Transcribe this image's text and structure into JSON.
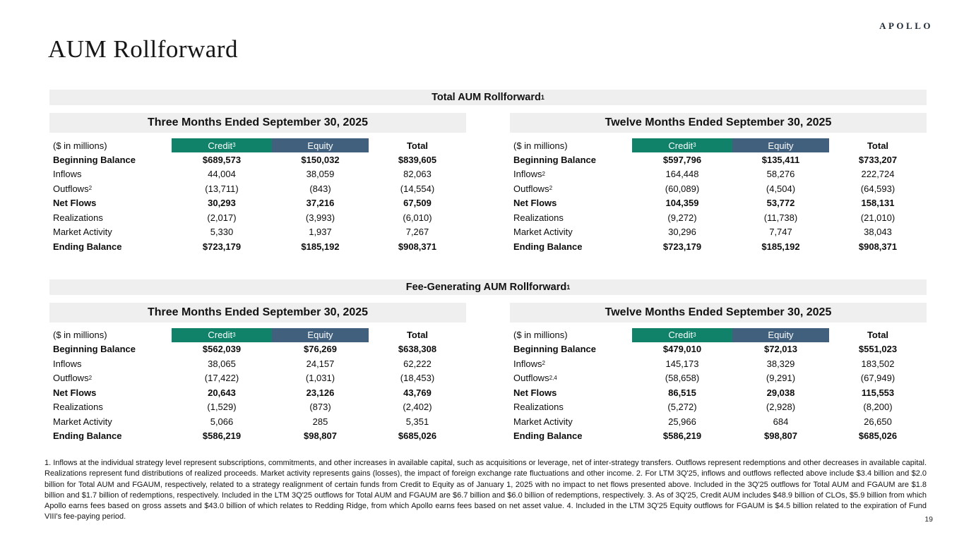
{
  "logo": "APOLLO",
  "page_title": "AUM Rollforward",
  "page_number": "19",
  "colors": {
    "credit": "#10826A",
    "equity": "#41607E",
    "band": "#EFEFEF"
  },
  "sections": [
    {
      "title": "Total AUM Rollforward",
      "title_sup": "1",
      "tables": [
        {
          "period": "Three Months Ended September 30, 2025",
          "unit_label": "($ in millions)",
          "columns": [
            {
              "label": "Credit",
              "sup": "3"
            },
            {
              "label": "Equity",
              "sup": ""
            },
            {
              "label": "Total",
              "sup": ""
            }
          ],
          "rows": [
            {
              "label": "Beginning Balance",
              "sup": "",
              "bold": true,
              "values": [
                "$689,573",
                "$150,032",
                "$839,605"
              ]
            },
            {
              "label": "Inflows",
              "sup": "",
              "bold": false,
              "values": [
                "44,004",
                "38,059",
                "82,063"
              ]
            },
            {
              "label": "Outflows",
              "sup": "2",
              "bold": false,
              "values": [
                "(13,711)",
                "(843)",
                "(14,554)"
              ]
            },
            {
              "label": "Net Flows",
              "sup": "",
              "bold": true,
              "values": [
                "30,293",
                "37,216",
                "67,509"
              ]
            },
            {
              "label": "Realizations",
              "sup": "",
              "bold": false,
              "values": [
                "(2,017)",
                "(3,993)",
                "(6,010)"
              ]
            },
            {
              "label": "Market Activity",
              "sup": "",
              "bold": false,
              "values": [
                "5,330",
                "1,937",
                "7,267"
              ]
            },
            {
              "label": "Ending Balance",
              "sup": "",
              "bold": true,
              "values": [
                "$723,179",
                "$185,192",
                "$908,371"
              ]
            }
          ]
        },
        {
          "period": "Twelve Months Ended September 30, 2025",
          "unit_label": "($ in millions)",
          "columns": [
            {
              "label": "Credit",
              "sup": "3"
            },
            {
              "label": "Equity",
              "sup": ""
            },
            {
              "label": "Total",
              "sup": ""
            }
          ],
          "rows": [
            {
              "label": "Beginning Balance",
              "sup": "",
              "bold": true,
              "values": [
                "$597,796",
                "$135,411",
                "$733,207"
              ]
            },
            {
              "label": "Inflows",
              "sup": "2",
              "bold": false,
              "values": [
                "164,448",
                "58,276",
                "222,724"
              ]
            },
            {
              "label": "Outflows",
              "sup": "2",
              "bold": false,
              "values": [
                "(60,089)",
                "(4,504)",
                "(64,593)"
              ]
            },
            {
              "label": "Net Flows",
              "sup": "",
              "bold": true,
              "values": [
                "104,359",
                "53,772",
                "158,131"
              ]
            },
            {
              "label": "Realizations",
              "sup": "",
              "bold": false,
              "values": [
                "(9,272)",
                "(11,738)",
                "(21,010)"
              ]
            },
            {
              "label": "Market Activity",
              "sup": "",
              "bold": false,
              "values": [
                "30,296",
                "7,747",
                "38,043"
              ]
            },
            {
              "label": "Ending Balance",
              "sup": "",
              "bold": true,
              "values": [
                "$723,179",
                "$185,192",
                "$908,371"
              ]
            }
          ]
        }
      ]
    },
    {
      "title": "Fee-Generating AUM Rollforward",
      "title_sup": "1",
      "tables": [
        {
          "period": "Three Months Ended September 30, 2025",
          "unit_label": "($ in millions)",
          "columns": [
            {
              "label": "Credit",
              "sup": "3"
            },
            {
              "label": "Equity",
              "sup": ""
            },
            {
              "label": "Total",
              "sup": ""
            }
          ],
          "rows": [
            {
              "label": "Beginning Balance",
              "sup": "",
              "bold": true,
              "values": [
                "$562,039",
                "$76,269",
                "$638,308"
              ]
            },
            {
              "label": "Inflows",
              "sup": "",
              "bold": false,
              "values": [
                "38,065",
                "24,157",
                "62,222"
              ]
            },
            {
              "label": "Outflows",
              "sup": "2",
              "bold": false,
              "values": [
                "(17,422)",
                "(1,031)",
                "(18,453)"
              ]
            },
            {
              "label": "Net Flows",
              "sup": "",
              "bold": true,
              "values": [
                "20,643",
                "23,126",
                "43,769"
              ]
            },
            {
              "label": "Realizations",
              "sup": "",
              "bold": false,
              "values": [
                "(1,529)",
                "(873)",
                "(2,402)"
              ]
            },
            {
              "label": "Market Activity",
              "sup": "",
              "bold": false,
              "values": [
                "5,066",
                "285",
                "5,351"
              ]
            },
            {
              "label": "Ending Balance",
              "sup": "",
              "bold": true,
              "values": [
                "$586,219",
                "$98,807",
                "$685,026"
              ]
            }
          ]
        },
        {
          "period": "Twelve Months Ended September 30, 2025",
          "unit_label": "($ in millions)",
          "columns": [
            {
              "label": "Credit",
              "sup": "3"
            },
            {
              "label": "Equity",
              "sup": ""
            },
            {
              "label": "Total",
              "sup": ""
            }
          ],
          "rows": [
            {
              "label": "Beginning Balance",
              "sup": "",
              "bold": true,
              "values": [
                "$479,010",
                "$72,013",
                "$551,023"
              ]
            },
            {
              "label": "Inflows",
              "sup": "2",
              "bold": false,
              "values": [
                "145,173",
                "38,329",
                "183,502"
              ]
            },
            {
              "label": "Outflows",
              "sup": "2,4",
              "bold": false,
              "values": [
                "(58,658)",
                "(9,291)",
                "(67,949)"
              ]
            },
            {
              "label": "Net Flows",
              "sup": "",
              "bold": true,
              "values": [
                "86,515",
                "29,038",
                "115,553"
              ]
            },
            {
              "label": "Realizations",
              "sup": "",
              "bold": false,
              "values": [
                "(5,272)",
                "(2,928)",
                "(8,200)"
              ]
            },
            {
              "label": "Market Activity",
              "sup": "",
              "bold": false,
              "values": [
                "25,966",
                "684",
                "26,650"
              ]
            },
            {
              "label": "Ending Balance",
              "sup": "",
              "bold": true,
              "values": [
                "$586,219",
                "$98,807",
                "$685,026"
              ]
            }
          ]
        }
      ]
    }
  ],
  "footnotes": "1. Inflows at the individual strategy level represent subscriptions, commitments, and other increases in available capital, such as acquisitions or leverage, net of inter-strategy transfers. Outflows represent redemptions and other decreases in available capital. Realizations represent fund distributions of realized proceeds. Market activity represents gains (losses), the impact of foreign exchange rate fluctuations and other income. 2. For LTM 3Q'25, inflows and outflows reflected above include $3.4 billion and $2.0 billion for Total AUM and FGAUM, respectively, related to a strategy realignment of certain funds from Credit to Equity as of January 1, 2025 with no impact to net flows presented above. Included in the 3Q'25 outflows for Total AUM and FGAUM are $1.8 billion and $1.7 billion of redemptions, respectively. Included in the LTM 3Q'25 outflows for Total AUM and FGAUM are $6.7 billion and $6.0 billion of redemptions, respectively. 3. As of 3Q'25, Credit AUM includes $48.9 billion of CLOs, $5.9 billion from which Apollo earns fees based on gross assets and $43.0 billion of which relates to Redding Ridge, from which Apollo earns fees based on net asset value. 4. Included in the LTM 3Q'25 Equity outflows for FGAUM is $4.5 billion related to the expiration of Fund VIII's fee-paying period."
}
